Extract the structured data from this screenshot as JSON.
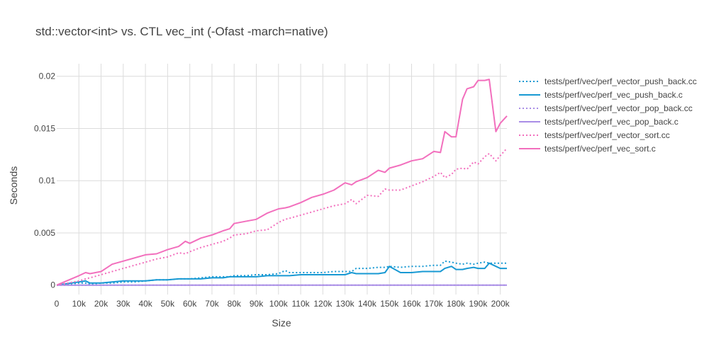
{
  "chart_data": {
    "type": "line",
    "title": "std::vector<int> vs. CTL vec_int (-Ofast -march=native)",
    "xlabel": "Size",
    "ylabel": "Seconds",
    "xlim": [
      0,
      203000
    ],
    "ylim": [
      -0.0009,
      0.0212
    ],
    "xticks": [
      0,
      10000,
      20000,
      30000,
      40000,
      50000,
      60000,
      70000,
      80000,
      90000,
      100000,
      110000,
      120000,
      130000,
      140000,
      150000,
      160000,
      170000,
      180000,
      190000,
      200000
    ],
    "xtick_labels": [
      "0",
      "10k",
      "20k",
      "30k",
      "40k",
      "50k",
      "60k",
      "70k",
      "80k",
      "90k",
      "100k",
      "110k",
      "120k",
      "130k",
      "140k",
      "150k",
      "160k",
      "170k",
      "180k",
      "190k",
      "200k"
    ],
    "yticks": [
      0,
      0.005,
      0.01,
      0.015,
      0.02
    ],
    "ytick_labels": [
      "0",
      "0.005",
      "0.01",
      "0.015",
      "0.02"
    ],
    "grid": true,
    "legend_position": "top-right, outside plot",
    "x": [
      0,
      10000,
      13000,
      15000,
      20000,
      25000,
      30000,
      35000,
      40000,
      45000,
      50000,
      55000,
      58000,
      60000,
      65000,
      70000,
      75000,
      78000,
      80000,
      85000,
      90000,
      95000,
      100000,
      103000,
      105000,
      110000,
      115000,
      120000,
      125000,
      130000,
      133000,
      135000,
      140000,
      145000,
      148000,
      150000,
      155000,
      160000,
      165000,
      170000,
      173000,
      175000,
      178000,
      180000,
      183000,
      185000,
      188000,
      190000,
      193000,
      195000,
      198000,
      200000,
      203000
    ],
    "series": [
      {
        "name": "tests/perf/vec/perf_vector_push_back.cc",
        "color": "#1899d3",
        "dash": "dot",
        "values": [
          0.0,
          0.0002,
          0.0002,
          0.0001,
          0.0002,
          0.0002,
          0.0003,
          0.0003,
          0.0004,
          0.0005,
          0.0005,
          0.0006,
          0.0006,
          0.0006,
          0.0007,
          0.0008,
          0.0008,
          0.0008,
          0.0009,
          0.0009,
          0.001,
          0.001,
          0.0011,
          0.0014,
          0.0012,
          0.0012,
          0.0012,
          0.0012,
          0.0013,
          0.0013,
          0.0013,
          0.0016,
          0.0016,
          0.0017,
          0.0017,
          0.0018,
          0.0017,
          0.0018,
          0.0018,
          0.0019,
          0.0019,
          0.0023,
          0.0022,
          0.0021,
          0.002,
          0.0021,
          0.002,
          0.0021,
          0.0022,
          0.0021,
          0.0021,
          0.0021,
          0.0021
        ]
      },
      {
        "name": "tests/perf/vec/perf_vec_push_back.c",
        "color": "#1899d3",
        "dash": "solid",
        "values": [
          0.0,
          0.0003,
          0.0004,
          0.0002,
          0.0002,
          0.0003,
          0.0004,
          0.0004,
          0.0004,
          0.0005,
          0.0005,
          0.0006,
          0.0006,
          0.0006,
          0.0006,
          0.0007,
          0.0007,
          0.0008,
          0.0008,
          0.0008,
          0.0008,
          0.0009,
          0.0009,
          0.0009,
          0.0009,
          0.001,
          0.001,
          0.001,
          0.001,
          0.001,
          0.0012,
          0.0011,
          0.0011,
          0.0011,
          0.0012,
          0.0018,
          0.0012,
          0.0012,
          0.0013,
          0.0013,
          0.0013,
          0.0016,
          0.0018,
          0.0015,
          0.0015,
          0.0016,
          0.0017,
          0.0016,
          0.0016,
          0.0021,
          0.0018,
          0.0016,
          0.0016
        ]
      },
      {
        "name": "tests/perf/vec/perf_vector_pop_back.cc",
        "color": "#a98de6",
        "dash": "dot",
        "values": [
          0.0,
          0.0,
          0.0,
          0.0,
          0.0,
          0.0,
          0.0,
          0.0,
          0.0,
          0.0,
          0.0,
          0.0,
          0.0,
          0.0,
          0.0,
          0.0,
          0.0,
          0.0,
          0.0,
          0.0,
          0.0,
          0.0,
          0.0,
          0.0,
          0.0,
          0.0,
          0.0,
          0.0,
          0.0,
          0.0,
          0.0,
          0.0,
          0.0,
          0.0,
          0.0,
          0.0,
          0.0,
          0.0,
          0.0,
          0.0,
          0.0,
          0.0,
          0.0,
          0.0,
          0.0,
          0.0,
          0.0,
          0.0,
          0.0,
          0.0,
          0.0,
          0.0,
          0.0
        ]
      },
      {
        "name": "tests/perf/vec/perf_vec_pop_back.c",
        "color": "#a98de6",
        "dash": "solid",
        "values": [
          0.0,
          0.0,
          0.0,
          0.0,
          0.0,
          0.0,
          0.0,
          0.0,
          0.0,
          0.0,
          0.0,
          0.0,
          0.0,
          0.0,
          0.0,
          0.0,
          0.0,
          0.0,
          0.0,
          0.0,
          0.0,
          0.0,
          0.0,
          0.0,
          0.0,
          0.0,
          0.0,
          0.0,
          0.0,
          0.0,
          0.0,
          0.0,
          0.0,
          0.0,
          0.0,
          0.0,
          0.0,
          0.0,
          0.0,
          0.0,
          0.0,
          0.0,
          0.0,
          0.0,
          0.0,
          0.0,
          0.0,
          0.0,
          0.0,
          0.0,
          0.0,
          0.0,
          0.0
        ]
      },
      {
        "name": "tests/perf/vec/perf_vector_sort.cc",
        "color": "#f26fbd",
        "dash": "dot",
        "values": [
          0.0,
          0.0004,
          0.0006,
          0.0007,
          0.001,
          0.0013,
          0.0016,
          0.0019,
          0.0022,
          0.0025,
          0.0027,
          0.0031,
          0.003,
          0.0032,
          0.0036,
          0.0039,
          0.0042,
          0.0045,
          0.0048,
          0.0049,
          0.0052,
          0.0053,
          0.006,
          0.0063,
          0.0064,
          0.0067,
          0.007,
          0.0073,
          0.0076,
          0.0078,
          0.0082,
          0.0078,
          0.0086,
          0.0085,
          0.0092,
          0.0091,
          0.0091,
          0.0095,
          0.0099,
          0.0104,
          0.0108,
          0.0103,
          0.0106,
          0.0111,
          0.0112,
          0.0111,
          0.0118,
          0.0116,
          0.0123,
          0.0126,
          0.0119,
          0.0124,
          0.0131
        ]
      },
      {
        "name": "tests/perf/vec/perf_vec_sort.c",
        "color": "#f26fbd",
        "dash": "solid",
        "values": [
          0.0,
          0.0009,
          0.0012,
          0.0011,
          0.0013,
          0.002,
          0.0023,
          0.0026,
          0.0029,
          0.003,
          0.0034,
          0.0037,
          0.0042,
          0.004,
          0.0045,
          0.0048,
          0.0052,
          0.0054,
          0.0059,
          0.0061,
          0.0063,
          0.0069,
          0.0073,
          0.0074,
          0.0075,
          0.0079,
          0.0084,
          0.0087,
          0.0091,
          0.0098,
          0.0096,
          0.0099,
          0.0103,
          0.011,
          0.0108,
          0.0112,
          0.0115,
          0.0119,
          0.0121,
          0.0128,
          0.0127,
          0.0147,
          0.0142,
          0.0142,
          0.0178,
          0.0188,
          0.019,
          0.0196,
          0.0196,
          0.0197,
          0.0147,
          0.0155,
          0.0162
        ]
      }
    ]
  }
}
